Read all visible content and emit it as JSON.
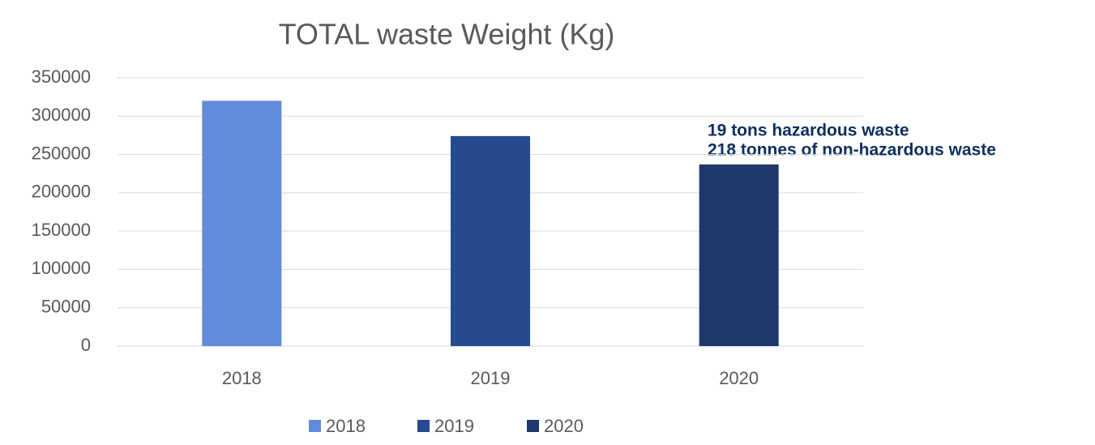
{
  "chart_data": {
    "type": "bar",
    "title": "TOTAL waste Weight (Kg)",
    "categories": [
      "2018",
      "2019",
      "2020"
    ],
    "series": [
      {
        "name": "2018",
        "color": "#618ad9",
        "values": [
          320000,
          null,
          null
        ]
      },
      {
        "name": "2019",
        "color": "#254a8f",
        "values": [
          null,
          274000,
          null
        ]
      },
      {
        "name": "2020",
        "color": "#1f386b",
        "values": [
          null,
          null,
          237000
        ]
      }
    ],
    "ylim": [
      0,
      350000
    ],
    "yticks": [
      0,
      50000,
      100000,
      150000,
      200000,
      250000,
      300000,
      350000
    ],
    "grid": true,
    "legend": "bottom",
    "annotations": [
      "19 tons hazardous waste",
      "218 tonnes of non-hazardous waste"
    ]
  }
}
